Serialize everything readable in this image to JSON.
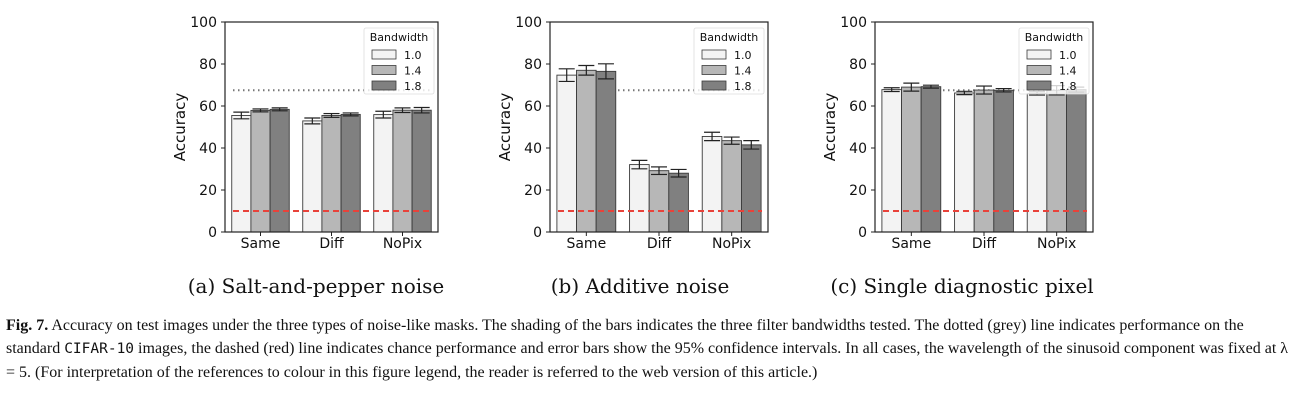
{
  "chart_data": [
    {
      "type": "bar",
      "caption": "(a) Salt-and-pepper noise",
      "categories": [
        "Same",
        "Diff",
        "NoPix"
      ],
      "ylabel": "Accuracy",
      "ylim": [
        0,
        100
      ],
      "yticks": [
        "0",
        "20",
        "40",
        "60",
        "80",
        "100"
      ],
      "legend": {
        "title": "Bandwidth",
        "placement": "top-right"
      },
      "series": [
        {
          "name": "1.0",
          "color": "#f3f3f3",
          "values": [
            55.5,
            52.9,
            55.9
          ],
          "errors": [
            1.6,
            1.4,
            1.6
          ]
        },
        {
          "name": "1.4",
          "color": "#b7b7b7",
          "values": [
            57.9,
            55.5,
            58.0
          ],
          "errors": [
            0.7,
            0.9,
            1.1
          ]
        },
        {
          "name": "1.8",
          "color": "#808080",
          "values": [
            58.4,
            56.0,
            58.0
          ],
          "errors": [
            0.7,
            0.7,
            1.3
          ]
        }
      ],
      "reference_lines": {
        "standard_dotted_grey": 67.5,
        "chance_dashed_red": 10
      }
    },
    {
      "type": "bar",
      "caption": "(b) Additive noise",
      "categories": [
        "Same",
        "Diff",
        "NoPix"
      ],
      "ylabel": "Accuracy",
      "ylim": [
        0,
        100
      ],
      "yticks": [
        "0",
        "20",
        "40",
        "60",
        "80",
        "100"
      ],
      "legend": {
        "title": "Bandwidth",
        "placement": "top-right"
      },
      "series": [
        {
          "name": "1.0",
          "color": "#f3f3f3",
          "values": [
            74.7,
            32.1,
            45.5
          ],
          "errors": [
            3.0,
            2.0,
            2.0
          ]
        },
        {
          "name": "1.4",
          "color": "#b7b7b7",
          "values": [
            77.0,
            29.2,
            43.5
          ],
          "errors": [
            2.3,
            1.8,
            1.7
          ]
        },
        {
          "name": "1.8",
          "color": "#808080",
          "values": [
            76.5,
            28.0,
            41.5
          ],
          "errors": [
            3.6,
            1.8,
            2.0
          ]
        }
      ],
      "reference_lines": {
        "standard_dotted_grey": 67.5,
        "chance_dashed_red": 10
      }
    },
    {
      "type": "bar",
      "caption": "(c) Single diagnostic pixel",
      "categories": [
        "Same",
        "Diff",
        "NoPix"
      ],
      "ylabel": "Accuracy",
      "ylim": [
        0,
        100
      ],
      "yticks": [
        "0",
        "20",
        "40",
        "60",
        "80",
        "100"
      ],
      "legend": {
        "title": "Bandwidth",
        "placement": "top-right"
      },
      "series": [
        {
          "name": "1.0",
          "color": "#f3f3f3",
          "values": [
            67.8,
            66.2,
            66.0
          ],
          "errors": [
            0.9,
            0.8,
            0.8
          ]
        },
        {
          "name": "1.4",
          "color": "#b7b7b7",
          "values": [
            69.0,
            67.6,
            67.5
          ],
          "errors": [
            1.9,
            1.9,
            2.2
          ]
        },
        {
          "name": "1.8",
          "color": "#808080",
          "values": [
            69.2,
            67.5,
            67.8
          ],
          "errors": [
            0.7,
            0.8,
            1.2
          ]
        }
      ],
      "reference_lines": {
        "standard_dotted_grey": 67.5,
        "chance_dashed_red": 10
      }
    }
  ],
  "caption": {
    "label": "Fig. 7.",
    "text_1": "Accuracy on test images under the three types of noise-like masks. The shading of the bars indicates the three filter bandwidths tested. The dotted (grey) line indicates performance on the standard",
    "dataset": "CIFAR-10",
    "text_2": "images, the dashed (red) line indicates chance performance and error bars show the 95% confidence intervals. In all cases, the wavelength of the sinusoid component was fixed at λ = 5. (For interpretation of the references to colour in this figure legend, the reader is referred to the web version of this article.)"
  },
  "colors": {
    "chance_line": "#e8423a",
    "standard_line": "#777777",
    "bar_edge": "#3a3a3a"
  }
}
